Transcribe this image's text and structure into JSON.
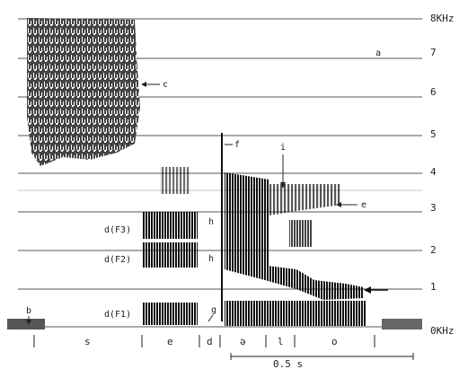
{
  "y_axis": {
    "unit": "KHz",
    "labels": [
      "8KHz",
      "7",
      "6",
      "5",
      "4",
      "3",
      "2",
      "1",
      "0KHz"
    ]
  },
  "annotations": {
    "a": "a",
    "b": "b",
    "c": "c",
    "e": "e",
    "f": "f",
    "g": "g",
    "h1": "h",
    "h2": "h",
    "i": "i"
  },
  "formants": {
    "f3": "d(F3)",
    "f2": "d(F2)",
    "f1": "d(F1)"
  },
  "segments": [
    "s",
    "e",
    "d",
    "ə",
    "l",
    "o"
  ],
  "scale_bar": "0.5 s"
}
